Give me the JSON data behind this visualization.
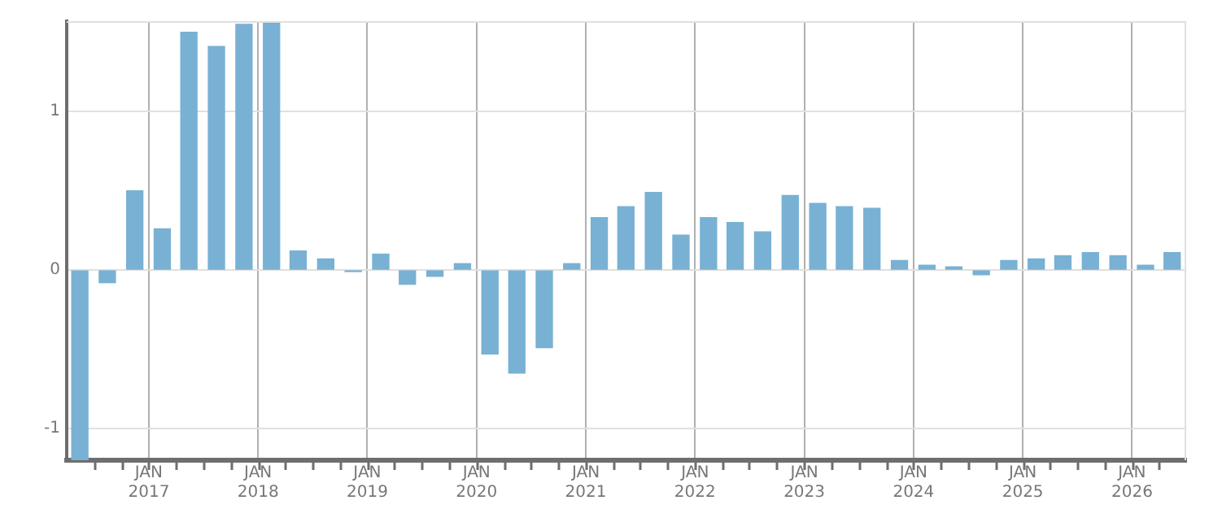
{
  "chart_data": {
    "type": "bar",
    "x": [
      "2016-05-15",
      "2016-08-15",
      "2016-11-15",
      "2017-02-15",
      "2017-05-15",
      "2017-08-15",
      "2017-11-15",
      "2018-02-15",
      "2018-05-15",
      "2018-08-15",
      "2018-11-15",
      "2019-02-15",
      "2019-05-15",
      "2019-08-15",
      "2019-11-15",
      "2020-02-15",
      "2020-05-15",
      "2020-08-15",
      "2020-11-15",
      "2021-02-15",
      "2021-05-15",
      "2021-08-15",
      "2021-11-15",
      "2022-02-15",
      "2022-05-15",
      "2022-08-15",
      "2022-11-15",
      "2023-02-15",
      "2023-05-15",
      "2023-08-15",
      "2023-11-15",
      "2024-02-15",
      "2024-05-15",
      "2024-08-15",
      "2024-11-15",
      "2025-02-15",
      "2025-05-15",
      "2025-08-15",
      "2025-11-15",
      "2026-02-15",
      "2026-05-15"
    ],
    "values": [
      -1.2,
      -0.08,
      0.5,
      0.26,
      1.5,
      1.41,
      1.55,
      1.56,
      0.12,
      0.07,
      -0.01,
      0.1,
      -0.09,
      -0.04,
      0.04,
      -0.53,
      -0.65,
      -0.49,
      0.04,
      0.33,
      0.4,
      0.49,
      0.22,
      0.33,
      0.3,
      0.24,
      0.47,
      0.42,
      0.4,
      0.39,
      0.06,
      0.03,
      0.02,
      -0.03,
      0.06,
      0.07,
      0.09,
      0.11,
      0.09,
      0.03,
      0.11
    ],
    "color": "#78b1d3",
    "xlim": [
      "2016-04-01",
      "2026-07-01"
    ],
    "xticks": [
      {
        "value": "2016-07-01",
        "label": null
      },
      {
        "value": "2016-10-01",
        "label": null
      },
      {
        "value": "2017-01-01",
        "label": "JAN 2017"
      },
      {
        "value": "2017-04-01",
        "label": null
      },
      {
        "value": "2017-07-01",
        "label": null
      },
      {
        "value": "2017-10-01",
        "label": null
      },
      {
        "value": "2018-01-01",
        "label": "JAN 2018"
      },
      {
        "value": "2018-04-01",
        "label": null
      },
      {
        "value": "2018-07-01",
        "label": null
      },
      {
        "value": "2018-10-01",
        "label": null
      },
      {
        "value": "2019-01-01",
        "label": "JAN 2019"
      },
      {
        "value": "2019-04-01",
        "label": null
      },
      {
        "value": "2019-07-01",
        "label": null
      },
      {
        "value": "2019-10-01",
        "label": null
      },
      {
        "value": "2020-01-01",
        "label": "JAN 2020"
      },
      {
        "value": "2020-04-01",
        "label": null
      },
      {
        "value": "2020-07-01",
        "label": null
      },
      {
        "value": "2020-10-01",
        "label": null
      },
      {
        "value": "2021-01-01",
        "label": "JAN 2021"
      },
      {
        "value": "2021-04-01",
        "label": null
      },
      {
        "value": "2021-07-01",
        "label": null
      },
      {
        "value": "2021-10-01",
        "label": null
      },
      {
        "value": "2022-01-01",
        "label": "JAN 2022"
      },
      {
        "value": "2022-04-01",
        "label": null
      },
      {
        "value": "2022-07-01",
        "label": null
      },
      {
        "value": "2022-10-01",
        "label": null
      },
      {
        "value": "2023-01-01",
        "label": "JAN 2023"
      },
      {
        "value": "2023-04-01",
        "label": null
      },
      {
        "value": "2023-07-01",
        "label": null
      },
      {
        "value": "2023-10-01",
        "label": null
      },
      {
        "value": "2024-01-01",
        "label": "JAN 2024"
      },
      {
        "value": "2024-04-01",
        "label": null
      },
      {
        "value": "2024-07-01",
        "label": null
      },
      {
        "value": "2024-10-01",
        "label": null
      },
      {
        "value": "2025-01-01",
        "label": "JAN 2025"
      },
      {
        "value": "2025-04-01",
        "label": null
      },
      {
        "value": "2025-07-01",
        "label": null
      },
      {
        "value": "2025-10-01",
        "label": null
      },
      {
        "value": "2026-01-01",
        "label": "JAN 2026"
      },
      {
        "value": "2026-04-01",
        "label": null
      }
    ],
    "ylim": [
      -1.2,
      1.57
    ],
    "yticks": [
      -1,
      0,
      1
    ],
    "grid": true
  }
}
